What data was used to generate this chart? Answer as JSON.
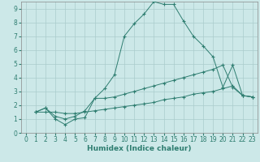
{
  "title": "",
  "xlabel": "Humidex (Indice chaleur)",
  "ylabel": "",
  "xlim": [
    -0.5,
    23.5
  ],
  "ylim": [
    0,
    9.5
  ],
  "background_color": "#cce8e8",
  "grid_color": "#aacccc",
  "line_color": "#2e7d70",
  "series": [
    {
      "x": [
        1,
        2,
        3,
        4,
        5,
        6,
        7,
        8,
        9,
        10,
        11,
        12,
        13,
        14,
        15,
        16,
        17,
        18,
        19,
        20,
        21,
        22,
        23
      ],
      "y": [
        1.5,
        1.8,
        1.0,
        0.6,
        1.0,
        1.1,
        2.5,
        3.2,
        4.2,
        7.0,
        7.9,
        8.6,
        9.5,
        9.3,
        9.3,
        8.1,
        7.0,
        6.3,
        5.5,
        3.3,
        4.9,
        2.7,
        2.6
      ]
    },
    {
      "x": [
        1,
        2,
        3,
        4,
        5,
        6,
        7,
        8,
        9,
        10,
        11,
        12,
        13,
        14,
        15,
        16,
        17,
        18,
        19,
        20,
        21,
        22,
        23
      ],
      "y": [
        1.5,
        1.8,
        1.2,
        1.0,
        1.2,
        1.6,
        2.5,
        2.5,
        2.6,
        2.8,
        3.0,
        3.2,
        3.4,
        3.6,
        3.8,
        4.0,
        4.2,
        4.4,
        4.6,
        4.9,
        3.3,
        2.7,
        2.6
      ]
    },
    {
      "x": [
        1,
        2,
        3,
        4,
        5,
        6,
        7,
        8,
        9,
        10,
        11,
        12,
        13,
        14,
        15,
        16,
        17,
        18,
        19,
        20,
        21,
        22,
        23
      ],
      "y": [
        1.5,
        1.5,
        1.5,
        1.4,
        1.4,
        1.5,
        1.6,
        1.7,
        1.8,
        1.9,
        2.0,
        2.1,
        2.2,
        2.4,
        2.5,
        2.6,
        2.8,
        2.9,
        3.0,
        3.2,
        3.4,
        2.7,
        2.6
      ]
    }
  ],
  "xticks": [
    0,
    1,
    2,
    3,
    4,
    5,
    6,
    7,
    8,
    9,
    10,
    11,
    12,
    13,
    14,
    15,
    16,
    17,
    18,
    19,
    20,
    21,
    22,
    23
  ],
  "yticks": [
    0,
    1,
    2,
    3,
    4,
    5,
    6,
    7,
    8,
    9
  ],
  "tick_fontsize": 5.5,
  "xlabel_fontsize": 6.5
}
